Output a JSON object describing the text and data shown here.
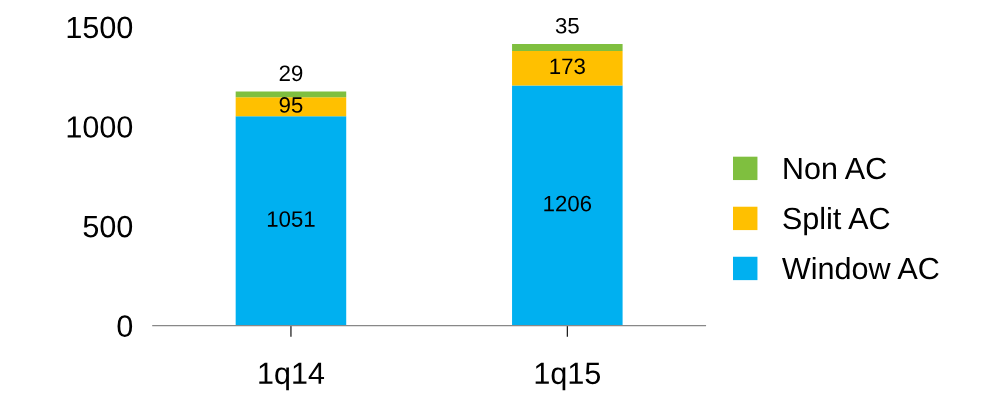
{
  "chart_data": {
    "type": "bar",
    "stacked": true,
    "categories": [
      "1q14",
      "1q15"
    ],
    "series": [
      {
        "name": "Window AC",
        "color": "#00b0f0",
        "values": [
          1051,
          1206
        ]
      },
      {
        "name": "Split AC",
        "color": "#ffc000",
        "values": [
          95,
          173
        ]
      },
      {
        "name": "Non AC",
        "color": "#7fbf3f",
        "values": [
          29,
          35
        ]
      }
    ],
    "ylim": [
      0,
      1500
    ],
    "yticks": [
      0,
      500,
      1000,
      1500
    ],
    "grid": false,
    "legend": "right",
    "data_labels": true
  }
}
